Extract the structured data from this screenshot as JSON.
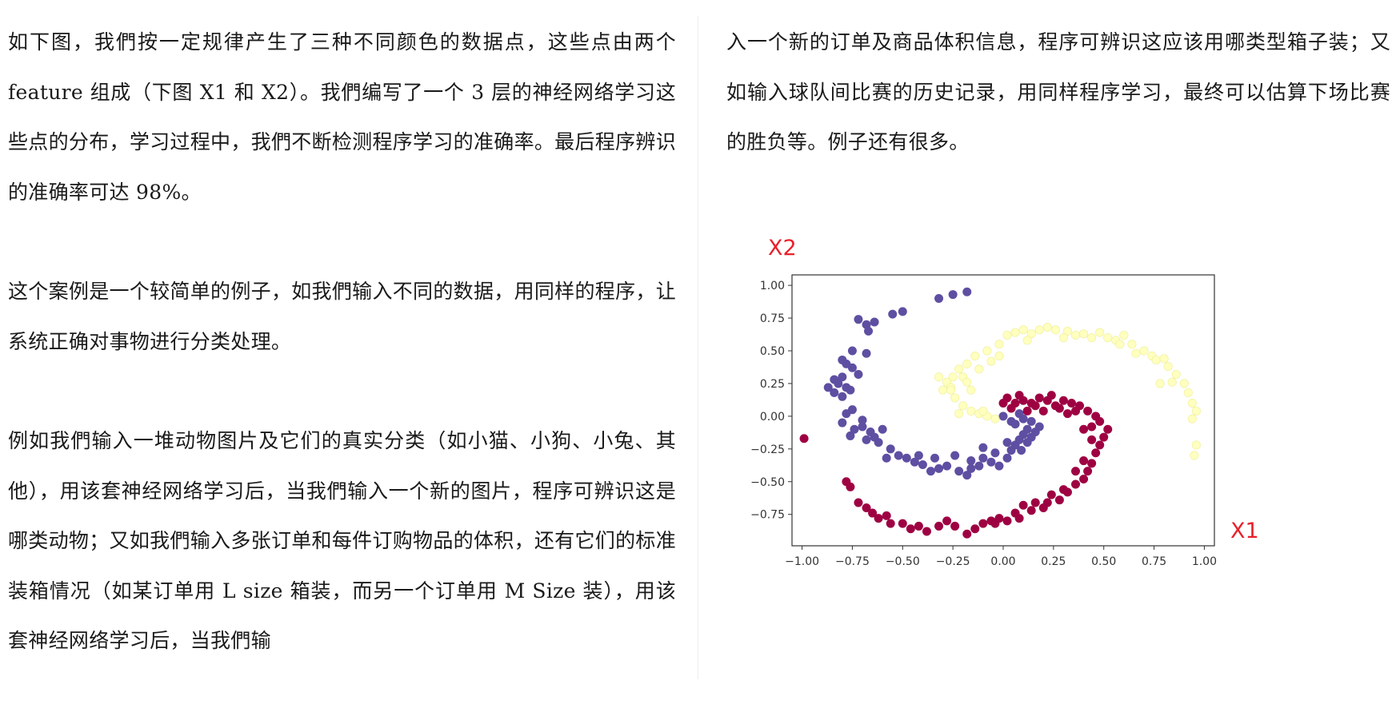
{
  "text": {
    "left_paragraphs": [
      "如下图，我們按一定规律产生了三种不同颜色的数据点，这些点由两个 feature 组成（下图 X1 和 X2）。我們编写了一个 3 层的神经网络学习这些点的分布，学习过程中，我們不断检测程序学习的准确率。最后程序辨识的准确率可达 98%。",
      "这个案例是一个较简单的例子，如我們输入不同的数据，用同样的程序，让系统正确对事物进行分类处理。",
      "例如我們输入一堆动物图片及它们的真实分类（如小猫、小狗、小兔、其他），用该套神经网络学习后，当我們输入一个新的图片，程序可辨识这是哪类动物；又如我們输入多张订单和每件订购物品的体积，还有它们的标准装箱情况（如某订单用 L size 箱装，而另一个订单用 M Size 装），用该套神经网络学习后，当我們输"
    ],
    "right_paragraphs": [
      "入一个新的订单及商品体积信息，程序可辨识这应该用哪类型箱子装；又如输入球队间比赛的历史记录，用同样程序学习，最终可以估算下场比赛的胜负等。例子还有很多。"
    ]
  },
  "chart_data": {
    "type": "scatter",
    "xlabel": "X1",
    "ylabel": "X2",
    "xlim": [
      -1.05,
      1.05
    ],
    "ylim": [
      -0.99,
      1.08
    ],
    "xticks": [
      -1.0,
      -0.75,
      -0.5,
      -0.25,
      0.0,
      0.25,
      0.5,
      0.75,
      1.0
    ],
    "yticks": [
      -0.75,
      -0.5,
      -0.25,
      0.0,
      0.25,
      0.5,
      0.75,
      1.0
    ],
    "x_tick_labels": [
      "−1.00",
      "−0.75",
      "−0.50",
      "−0.25",
      "0.00",
      "0.25",
      "0.50",
      "0.75",
      "1.00"
    ],
    "y_tick_labels": [
      "−0.75",
      "−0.50",
      "−0.25",
      "0.00",
      "0.25",
      "0.50",
      "0.75",
      "1.00"
    ],
    "grid": false,
    "legend": "none",
    "series": [
      {
        "color": "#5e4fa2",
        "points": [
          [
            -0.18,
            0.95
          ],
          [
            -0.25,
            0.93
          ],
          [
            -0.32,
            0.9
          ],
          [
            -0.5,
            0.8
          ],
          [
            -0.55,
            0.78
          ],
          [
            -0.64,
            0.72
          ],
          [
            -0.68,
            0.7
          ],
          [
            -0.72,
            0.74
          ],
          [
            -0.67,
            0.65
          ],
          [
            -0.75,
            0.5
          ],
          [
            -0.8,
            0.43
          ],
          [
            -0.78,
            0.4
          ],
          [
            -0.75,
            0.37
          ],
          [
            -0.68,
            0.48
          ],
          [
            -0.84,
            0.28
          ],
          [
            -0.87,
            0.22
          ],
          [
            -0.82,
            0.25
          ],
          [
            -0.78,
            0.22
          ],
          [
            -0.76,
            0.2
          ],
          [
            -0.8,
            0.15
          ],
          [
            -0.84,
            0.18
          ],
          [
            -0.75,
            0.05
          ],
          [
            -0.78,
            0.02
          ],
          [
            -0.8,
            -0.05
          ],
          [
            -0.74,
            -0.1
          ],
          [
            -0.76,
            -0.15
          ],
          [
            -0.7,
            -0.08
          ],
          [
            -0.66,
            -0.12
          ],
          [
            -0.68,
            -0.18
          ],
          [
            -0.62,
            -0.2
          ],
          [
            -0.6,
            -0.1
          ],
          [
            -0.64,
            -0.16
          ],
          [
            -0.56,
            -0.25
          ],
          [
            -0.52,
            -0.3
          ],
          [
            -0.48,
            -0.32
          ],
          [
            -0.44,
            -0.35
          ],
          [
            -0.4,
            -0.37
          ],
          [
            -0.36,
            -0.42
          ],
          [
            -0.32,
            -0.4
          ],
          [
            -0.28,
            -0.38
          ],
          [
            -0.22,
            -0.42
          ],
          [
            -0.18,
            -0.45
          ],
          [
            -0.16,
            -0.4
          ],
          [
            -0.12,
            -0.38
          ],
          [
            -0.1,
            -0.32
          ],
          [
            -0.06,
            -0.35
          ],
          [
            -0.02,
            -0.38
          ],
          [
            0.02,
            -0.32
          ],
          [
            0.04,
            -0.26
          ],
          [
            0.06,
            -0.22
          ],
          [
            0.08,
            -0.18
          ],
          [
            0.1,
            -0.14
          ],
          [
            0.12,
            -0.1
          ],
          [
            0.14,
            -0.16
          ],
          [
            0.16,
            -0.12
          ],
          [
            0.18,
            -0.08
          ],
          [
            0.14,
            -0.04
          ],
          [
            0.1,
            -0.02
          ],
          [
            0.08,
            0.02
          ],
          [
            0.04,
            -0.04
          ],
          [
            0.0,
            0.0
          ],
          [
            0.06,
            -0.06
          ],
          [
            0.12,
            -0.2
          ],
          [
            0.09,
            -0.26
          ],
          [
            0.02,
            -0.2
          ],
          [
            -0.04,
            -0.28
          ],
          [
            -0.1,
            -0.24
          ],
          [
            -0.16,
            -0.34
          ],
          [
            -0.24,
            -0.3
          ],
          [
            -0.34,
            -0.32
          ],
          [
            -0.42,
            -0.3
          ],
          [
            -0.58,
            -0.32
          ],
          [
            -0.7,
            -0.03
          ],
          [
            -0.8,
            0.3
          ],
          [
            -0.72,
            0.32
          ]
        ]
      },
      {
        "color": "#ffffbf",
        "stroke": "#eeee99",
        "points": [
          [
            0.02,
            0.62
          ],
          [
            0.06,
            0.64
          ],
          [
            0.1,
            0.66
          ],
          [
            0.14,
            0.63
          ],
          [
            0.18,
            0.66
          ],
          [
            0.22,
            0.68
          ],
          [
            0.26,
            0.66
          ],
          [
            0.32,
            0.65
          ],
          [
            0.36,
            0.62
          ],
          [
            0.4,
            0.63
          ],
          [
            0.44,
            0.6
          ],
          [
            0.48,
            0.64
          ],
          [
            0.52,
            0.6
          ],
          [
            0.56,
            0.58
          ],
          [
            0.6,
            0.62
          ],
          [
            0.64,
            0.55
          ],
          [
            0.66,
            0.48
          ],
          [
            0.7,
            0.5
          ],
          [
            0.74,
            0.46
          ],
          [
            0.76,
            0.43
          ],
          [
            0.8,
            0.44
          ],
          [
            0.82,
            0.38
          ],
          [
            0.86,
            0.32
          ],
          [
            0.9,
            0.25
          ],
          [
            0.92,
            0.18
          ],
          [
            0.94,
            0.1
          ],
          [
            0.96,
            0.04
          ],
          [
            0.94,
            -0.02
          ],
          [
            0.96,
            -0.22
          ],
          [
            0.95,
            -0.3
          ],
          [
            0.78,
            0.25
          ],
          [
            0.84,
            0.26
          ],
          [
            0.58,
            0.55
          ],
          [
            0.3,
            0.6
          ],
          [
            0.12,
            0.58
          ],
          [
            -0.02,
            0.55
          ],
          [
            -0.08,
            0.5
          ],
          [
            -0.14,
            0.46
          ],
          [
            -0.18,
            0.4
          ],
          [
            -0.22,
            0.36
          ],
          [
            -0.25,
            0.3
          ],
          [
            -0.28,
            0.26
          ],
          [
            -0.3,
            0.2
          ],
          [
            -0.32,
            0.3
          ],
          [
            -0.26,
            0.22
          ],
          [
            -0.24,
            0.14
          ],
          [
            -0.2,
            0.08
          ],
          [
            -0.16,
            0.04
          ],
          [
            -0.12,
            0.02
          ],
          [
            -0.08,
            0.0
          ],
          [
            -0.04,
            -0.02
          ],
          [
            -0.1,
            0.04
          ],
          [
            -0.22,
            0.02
          ],
          [
            -0.26,
            0.2
          ],
          [
            -0.2,
            0.3
          ],
          [
            -0.16,
            0.2
          ],
          [
            -0.12,
            0.36
          ],
          [
            -0.06,
            0.42
          ],
          [
            -0.02,
            0.46
          ],
          [
            -0.18,
            0.26
          ]
        ]
      },
      {
        "color": "#9e0142",
        "points": [
          [
            -0.99,
            -0.17
          ],
          [
            -0.78,
            -0.5
          ],
          [
            -0.76,
            -0.54
          ],
          [
            -0.72,
            -0.66
          ],
          [
            -0.68,
            -0.7
          ],
          [
            -0.65,
            -0.74
          ],
          [
            -0.62,
            -0.78
          ],
          [
            -0.56,
            -0.82
          ],
          [
            -0.5,
            -0.82
          ],
          [
            -0.46,
            -0.86
          ],
          [
            -0.42,
            -0.84
          ],
          [
            -0.38,
            -0.88
          ],
          [
            -0.32,
            -0.84
          ],
          [
            -0.28,
            -0.8
          ],
          [
            -0.24,
            -0.84
          ],
          [
            -0.18,
            -0.9
          ],
          [
            -0.14,
            -0.86
          ],
          [
            -0.1,
            -0.82
          ],
          [
            -0.06,
            -0.8
          ],
          [
            -0.02,
            -0.78
          ],
          [
            0.02,
            -0.8
          ],
          [
            0.06,
            -0.74
          ],
          [
            0.1,
            -0.68
          ],
          [
            0.14,
            -0.72
          ],
          [
            0.16,
            -0.66
          ],
          [
            0.2,
            -0.7
          ],
          [
            0.24,
            -0.6
          ],
          [
            0.28,
            -0.64
          ],
          [
            0.32,
            -0.58
          ],
          [
            0.36,
            -0.52
          ],
          [
            0.4,
            -0.48
          ],
          [
            0.42,
            -0.42
          ],
          [
            0.44,
            -0.36
          ],
          [
            0.46,
            -0.28
          ],
          [
            0.48,
            -0.22
          ],
          [
            0.5,
            -0.16
          ],
          [
            0.52,
            -0.1
          ],
          [
            0.48,
            -0.04
          ],
          [
            0.46,
            0.0
          ],
          [
            0.42,
            0.04
          ],
          [
            0.38,
            0.08
          ],
          [
            0.34,
            0.1
          ],
          [
            0.3,
            0.12
          ],
          [
            0.26,
            0.08
          ],
          [
            0.22,
            0.12
          ],
          [
            0.18,
            0.14
          ],
          [
            0.14,
            0.1
          ],
          [
            0.1,
            0.12
          ],
          [
            0.06,
            0.1
          ],
          [
            0.02,
            0.14
          ],
          [
            0.0,
            0.1
          ],
          [
            0.04,
            0.06
          ],
          [
            0.08,
            0.16
          ],
          [
            0.12,
            0.04
          ],
          [
            0.16,
            0.08
          ],
          [
            0.28,
            0.06
          ],
          [
            0.36,
            0.04
          ],
          [
            0.4,
            -0.1
          ],
          [
            0.44,
            -0.18
          ],
          [
            0.4,
            -0.34
          ],
          [
            0.36,
            -0.42
          ],
          [
            0.3,
            -0.56
          ],
          [
            0.22,
            -0.66
          ],
          [
            0.08,
            -0.78
          ],
          [
            -0.04,
            -0.82
          ],
          [
            0.44,
            -0.08
          ],
          [
            0.32,
            0.02
          ],
          [
            0.24,
            0.16
          ],
          [
            0.2,
            0.04
          ],
          [
            -0.58,
            -0.76
          ]
        ]
      }
    ]
  }
}
